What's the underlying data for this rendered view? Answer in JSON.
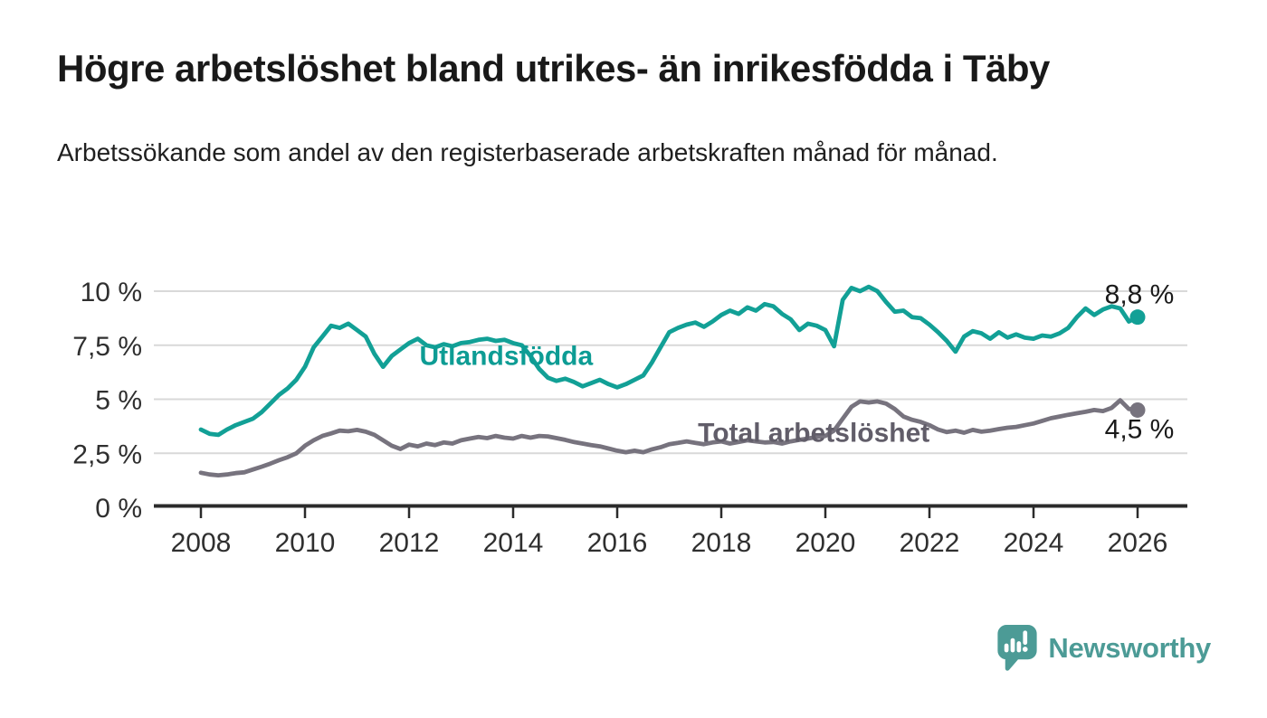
{
  "header": {
    "title": "Högre arbetslöshet bland utrikes- än inrikesfödda i Täby",
    "subtitle": "Arbetssökande som andel av den registerbaserade arbetskraften månad för månad."
  },
  "colors": {
    "background": "#FFFFFF",
    "title_text": "#191919",
    "subtitle_text": "#1F1F1F",
    "axis_text": "#2F2F2F",
    "gridline": "#D9D9D9",
    "axis_line": "#2B2B2B",
    "end_label_text": "#1A1A1A",
    "series_teal": "#12A096",
    "series_gray": "#77737E"
  },
  "chart_data": {
    "type": "line",
    "title": "Högre arbetslöshet bland utrikes- än inrikesfödda i Täby",
    "subtitle": "Arbetssökande som andel av den registerbaserade arbetskraften månad för månad.",
    "grid": true,
    "legend": "direct-labels-on-lines",
    "x_start": 2008,
    "x_step_years": 0.1666667,
    "xlim": [
      2007.1,
      2026.95
    ],
    "ylim": [
      0,
      10.5
    ],
    "x_ticks": [
      2008,
      2010,
      2012,
      2014,
      2016,
      2018,
      2020,
      2022,
      2024,
      2026
    ],
    "x_tick_labels": [
      "2008",
      "2010",
      "2012",
      "2014",
      "2016",
      "2018",
      "2020",
      "2022",
      "2024",
      "2026"
    ],
    "y_ticks": [
      {
        "value": 0,
        "label": "0 %"
      },
      {
        "value": 2.5,
        "label": "2,5 %"
      },
      {
        "value": 5,
        "label": "5 %"
      },
      {
        "value": 7.5,
        "label": "7,5 %"
      },
      {
        "value": 10,
        "label": "10 %"
      }
    ],
    "series": [
      {
        "name": "Utlandsfödda",
        "color": "#12A096",
        "label_color": "#0D9C94",
        "direct_label": {
          "text": "Utlandsfödda",
          "x": 2012.2,
          "y": 7.0
        },
        "end_label": "8,8 %",
        "end_label_side": "above",
        "end_value": 8.8,
        "values": [
          3.6,
          3.4,
          3.35,
          3.6,
          3.8,
          3.95,
          4.1,
          4.4,
          4.8,
          5.2,
          5.5,
          5.9,
          6.5,
          7.4,
          7.9,
          8.4,
          8.3,
          8.5,
          8.2,
          7.9,
          7.1,
          6.5,
          7.0,
          7.3,
          7.6,
          7.8,
          7.5,
          7.4,
          7.55,
          7.45,
          7.6,
          7.65,
          7.75,
          7.8,
          7.7,
          7.75,
          7.6,
          7.5,
          7.0,
          6.4,
          6.0,
          5.85,
          5.95,
          5.8,
          5.6,
          5.75,
          5.9,
          5.7,
          5.55,
          5.7,
          5.9,
          6.1,
          6.7,
          7.4,
          8.1,
          8.3,
          8.45,
          8.55,
          8.35,
          8.6,
          8.9,
          9.1,
          8.95,
          9.25,
          9.1,
          9.4,
          9.3,
          8.95,
          8.7,
          8.2,
          8.5,
          8.4,
          8.2,
          7.45,
          9.6,
          10.15,
          10.0,
          10.2,
          10.0,
          9.5,
          9.05,
          9.1,
          8.8,
          8.75,
          8.45,
          8.1,
          7.7,
          7.2,
          7.9,
          8.15,
          8.05,
          7.8,
          8.1,
          7.85,
          8.0,
          7.85,
          7.8,
          7.95,
          7.9,
          8.05,
          8.3,
          8.8,
          9.2,
          8.9,
          9.15,
          9.3,
          9.2,
          8.6,
          8.8
        ]
      },
      {
        "name": "Total arbetslöshet",
        "color": "#77737E",
        "label_color": "#615D69",
        "direct_label": {
          "text": "Total arbetslöshet",
          "x": 2017.55,
          "y": 3.45
        },
        "end_label": "4,5 %",
        "end_label_side": "below",
        "end_value": 4.5,
        "values": [
          1.6,
          1.52,
          1.48,
          1.52,
          1.58,
          1.62,
          1.75,
          1.88,
          2.02,
          2.18,
          2.32,
          2.5,
          2.85,
          3.1,
          3.3,
          3.42,
          3.55,
          3.52,
          3.58,
          3.5,
          3.35,
          3.1,
          2.85,
          2.7,
          2.9,
          2.82,
          2.95,
          2.88,
          3.0,
          2.95,
          3.1,
          3.18,
          3.25,
          3.2,
          3.3,
          3.22,
          3.18,
          3.3,
          3.22,
          3.3,
          3.28,
          3.2,
          3.12,
          3.02,
          2.95,
          2.88,
          2.82,
          2.72,
          2.62,
          2.55,
          2.62,
          2.55,
          2.68,
          2.78,
          2.92,
          2.98,
          3.05,
          2.98,
          2.92,
          3.0,
          3.05,
          2.95,
          3.02,
          3.1,
          3.05,
          3.0,
          3.02,
          2.95,
          3.05,
          3.12,
          3.18,
          3.25,
          3.3,
          3.55,
          4.1,
          4.65,
          4.9,
          4.85,
          4.9,
          4.8,
          4.55,
          4.2,
          4.05,
          3.95,
          3.8,
          3.6,
          3.48,
          3.55,
          3.45,
          3.58,
          3.5,
          3.55,
          3.62,
          3.68,
          3.72,
          3.8,
          3.88,
          4.0,
          4.12,
          4.2,
          4.28,
          4.35,
          4.42,
          4.5,
          4.45,
          4.6,
          4.95,
          4.55,
          4.5
        ]
      }
    ]
  },
  "footer": {
    "brand": "Newsworthy",
    "brand_color": "#4C9B96",
    "logo_icon": "newsworthy-speech-bubble-chart-icon"
  }
}
